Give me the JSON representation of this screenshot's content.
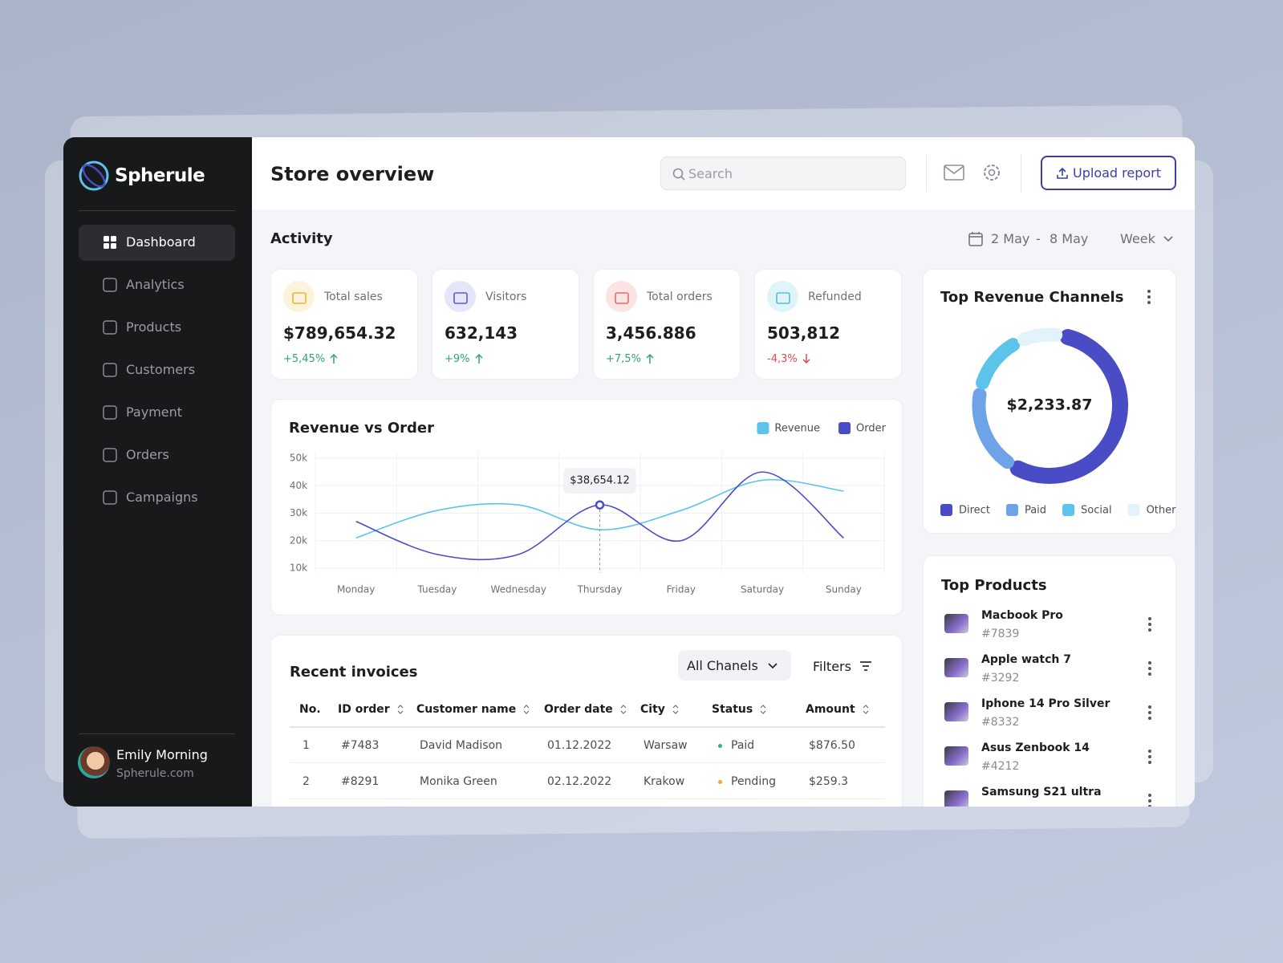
{
  "brand": "Spherule",
  "nav": [
    "Dashboard",
    "Analytics",
    "Products",
    "Customers",
    "Payment",
    "Orders",
    "Campaigns"
  ],
  "user": {
    "name": "Emily Morning",
    "site": "Spherule.com"
  },
  "header": {
    "title": "Store overview",
    "search_placeholder": "Search",
    "upload": "Upload report"
  },
  "activity": {
    "title": "Activity",
    "date_from": "2 May",
    "date_sep": "-",
    "date_to": "8 May",
    "period": "Week"
  },
  "kpis": [
    {
      "label": "Total sales",
      "value": "$789,654.32",
      "change": "+5,45%"
    },
    {
      "label": "Visitors",
      "value": "632,143",
      "change": "+9%"
    },
    {
      "label": "Total orders",
      "value": "3,456.886",
      "change": "+7,5%"
    },
    {
      "label": "Refunded",
      "value": "503,812",
      "change": "-4,3%"
    }
  ],
  "chart_data": [
    {
      "type": "line",
      "title": "Revenue vs Order",
      "categories": [
        "Monday",
        "Tuesday",
        "Wednesday",
        "Thursday",
        "Friday",
        "Saturday",
        "Sunday"
      ],
      "series": [
        {
          "name": "Revenue",
          "color": "#5cc4ea",
          "values": [
            21000,
            31000,
            33000,
            24000,
            31000,
            42000,
            38000
          ]
        },
        {
          "name": "Order",
          "color": "#4a4cc6",
          "values": [
            27000,
            15000,
            15000,
            33000,
            20000,
            45000,
            21000
          ]
        }
      ],
      "ylim": [
        10000,
        50000
      ],
      "yticks": [
        {
          "value": 10000,
          "label": "10k"
        },
        {
          "value": 20000,
          "label": "20k"
        },
        {
          "value": 30000,
          "label": "30k"
        },
        {
          "value": 40000,
          "label": "40k"
        },
        {
          "value": 50000,
          "label": "50k"
        }
      ],
      "grid": true,
      "legend": "top-right",
      "annotations": [
        {
          "text": "$38,654.12"
        }
      ]
    },
    {
      "type": "donut",
      "title": "Top Revenue Channels",
      "center_label": "$2,233.87",
      "categories": [
        "Direct",
        "Paid",
        "Social",
        "Other"
      ],
      "values": [
        56,
        20,
        14,
        10
      ],
      "colors": [
        "#4a4cc6",
        "#6fa3e8",
        "#5cc4ea",
        "#e3f3fb"
      ],
      "legend": "bottom"
    }
  ],
  "invoices": {
    "title": "Recent invoices",
    "channel": "All Chanels",
    "filters": "Filters",
    "columns": [
      "No.",
      "ID order",
      "Customer name",
      "Order date",
      "City",
      "Status",
      "Amount"
    ],
    "rows": [
      [
        "1",
        "#7483",
        "David Madison",
        "01.12.2022",
        "Warsaw",
        "Paid",
        "$876.50"
      ],
      [
        "2",
        "#8291",
        "Monika Green",
        "02.12.2022",
        "Krakow",
        "Pending",
        "$259.3"
      ]
    ]
  },
  "top_products": {
    "title": "Top Products",
    "items": [
      {
        "name": "Macbook Pro",
        "id": "#7839"
      },
      {
        "name": "Apple watch 7",
        "id": "#3292"
      },
      {
        "name": "Iphone 14 Pro Silver",
        "id": "#8332"
      },
      {
        "name": "Asus Zenbook 14",
        "id": "#4212"
      },
      {
        "name": "Samsung S21 ultra"
      }
    ]
  }
}
